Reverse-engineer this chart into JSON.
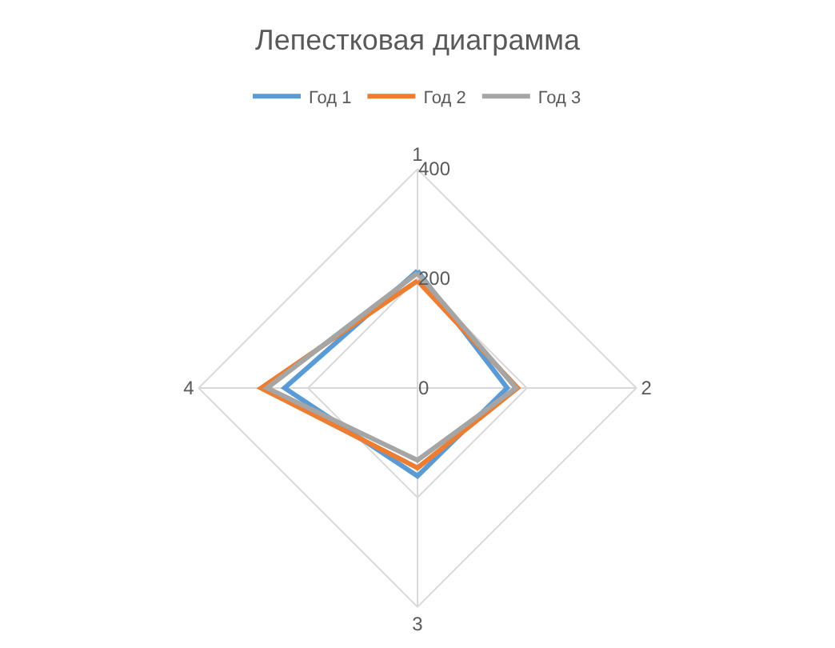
{
  "chart_data": {
    "type": "radar",
    "title": "Лепестковая диаграмма",
    "categories": [
      "1",
      "2",
      "3",
      "4"
    ],
    "series": [
      {
        "name": "Год 1",
        "color": "#5b9bd5",
        "values": [
          214,
          164,
          161,
          243
        ]
      },
      {
        "name": "Год 2",
        "color": "#ed7d31",
        "values": [
          196,
          183,
          146,
          286
        ]
      },
      {
        "name": "Год 3",
        "color": "#a5a5a5",
        "values": [
          210,
          180,
          132,
          275
        ]
      }
    ],
    "ylim": [
      0,
      400
    ],
    "yticks": [
      0,
      200,
      400
    ],
    "grid": true,
    "legend": "top",
    "marker": "none",
    "line_style": "solid"
  }
}
